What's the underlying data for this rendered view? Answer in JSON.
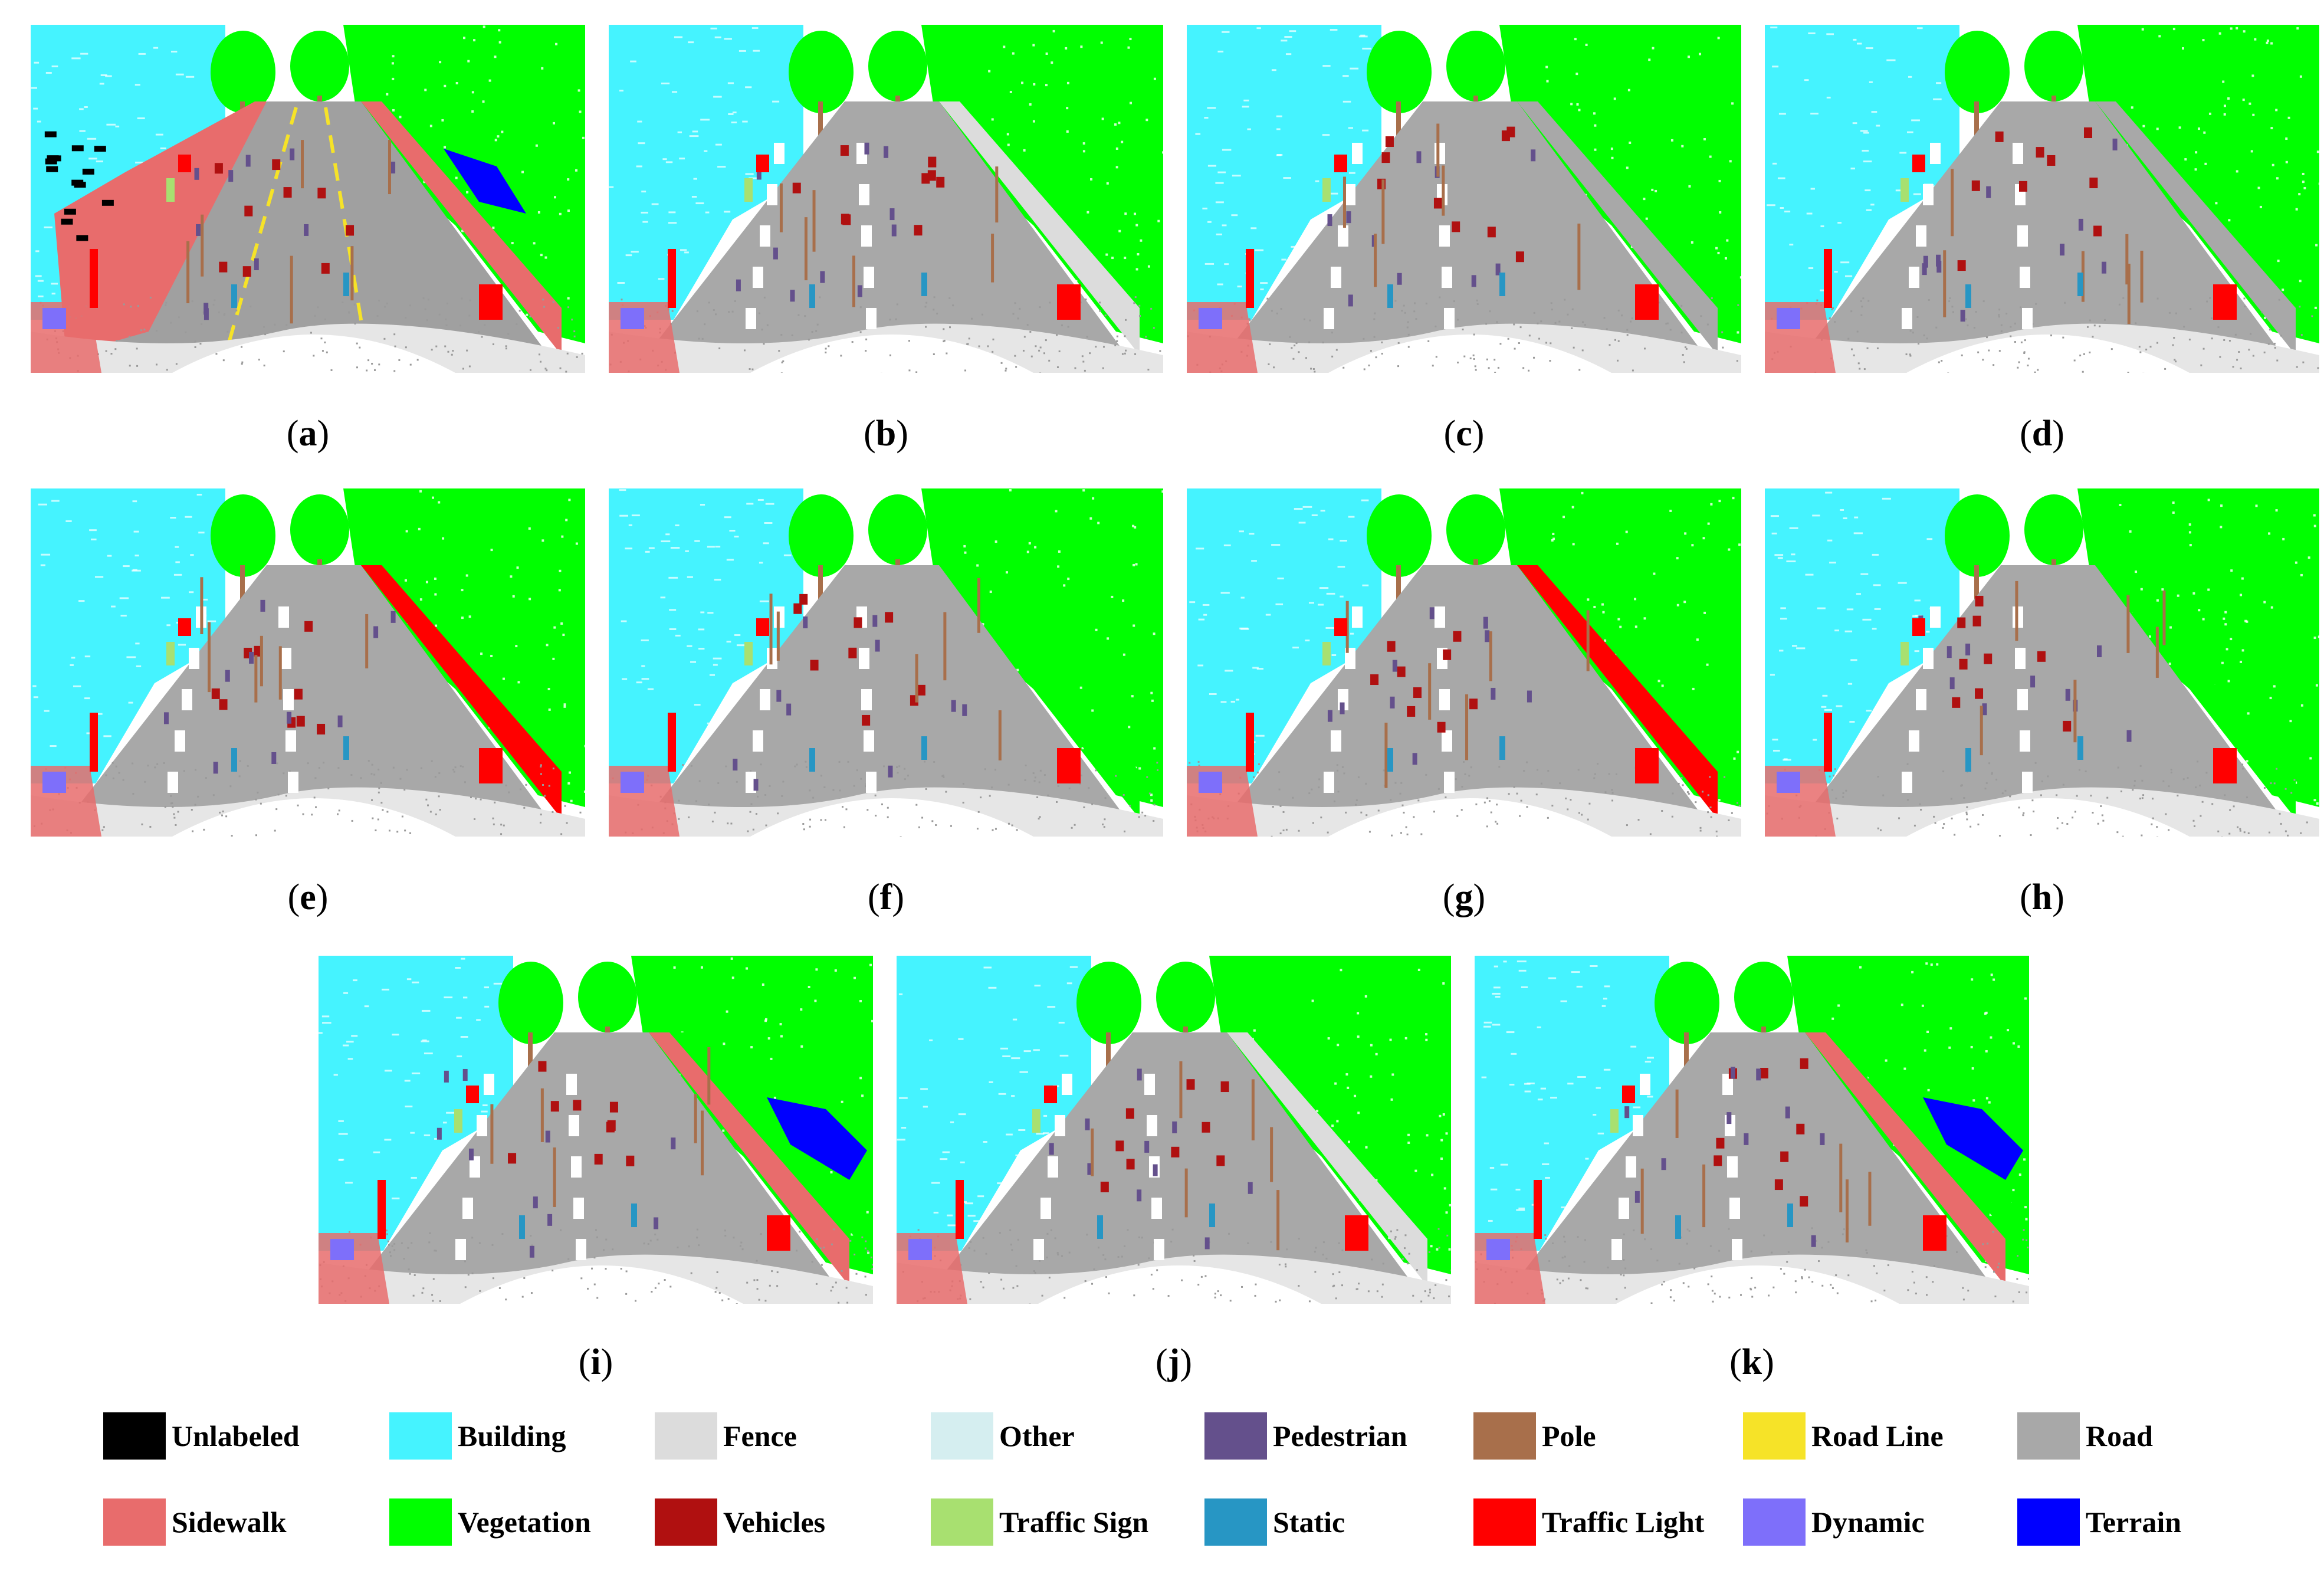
{
  "panels": [
    {
      "id": "a",
      "variant": "raw"
    },
    {
      "id": "b",
      "variant": "fence"
    },
    {
      "id": "c",
      "variant": "road"
    },
    {
      "id": "d",
      "variant": "road"
    },
    {
      "id": "e",
      "variant": "traffic-light"
    },
    {
      "id": "f",
      "variant": "vegetation"
    },
    {
      "id": "g",
      "variant": "traffic-light"
    },
    {
      "id": "h",
      "variant": "vegetation-thin"
    },
    {
      "id": "i",
      "variant": "sidewalk-terrain"
    },
    {
      "id": "j",
      "variant": "fence"
    },
    {
      "id": "k",
      "variant": "sidewalk-terrain"
    }
  ],
  "legend": [
    {
      "label": "Unlabeled",
      "color": "#000000"
    },
    {
      "label": "Building",
      "color": "#45f3ff"
    },
    {
      "label": "Fence",
      "color": "#dcdcdc"
    },
    {
      "label": "Other",
      "color": "#d5eef0"
    },
    {
      "label": "Pedestrian",
      "color": "#64508c"
    },
    {
      "label": "Pole",
      "color": "#a86f4b"
    },
    {
      "label": "Road Line",
      "color": "#f6e328"
    },
    {
      "label": "Road",
      "color": "#a8a8a8"
    },
    {
      "label": "Sidewalk",
      "color": "#e86c6c"
    },
    {
      "label": "Vegetation",
      "color": "#00ff00"
    },
    {
      "label": "Vehicles",
      "color": "#b01010"
    },
    {
      "label": "Traffic Sign",
      "color": "#a8e070"
    },
    {
      "label": "Static",
      "color": "#2796c4"
    },
    {
      "label": "Traffic Light",
      "color": "#ff0000"
    },
    {
      "label": "Dynamic",
      "color": "#7e6ffa"
    },
    {
      "label": "Terrain",
      "color": "#0000ff"
    }
  ]
}
